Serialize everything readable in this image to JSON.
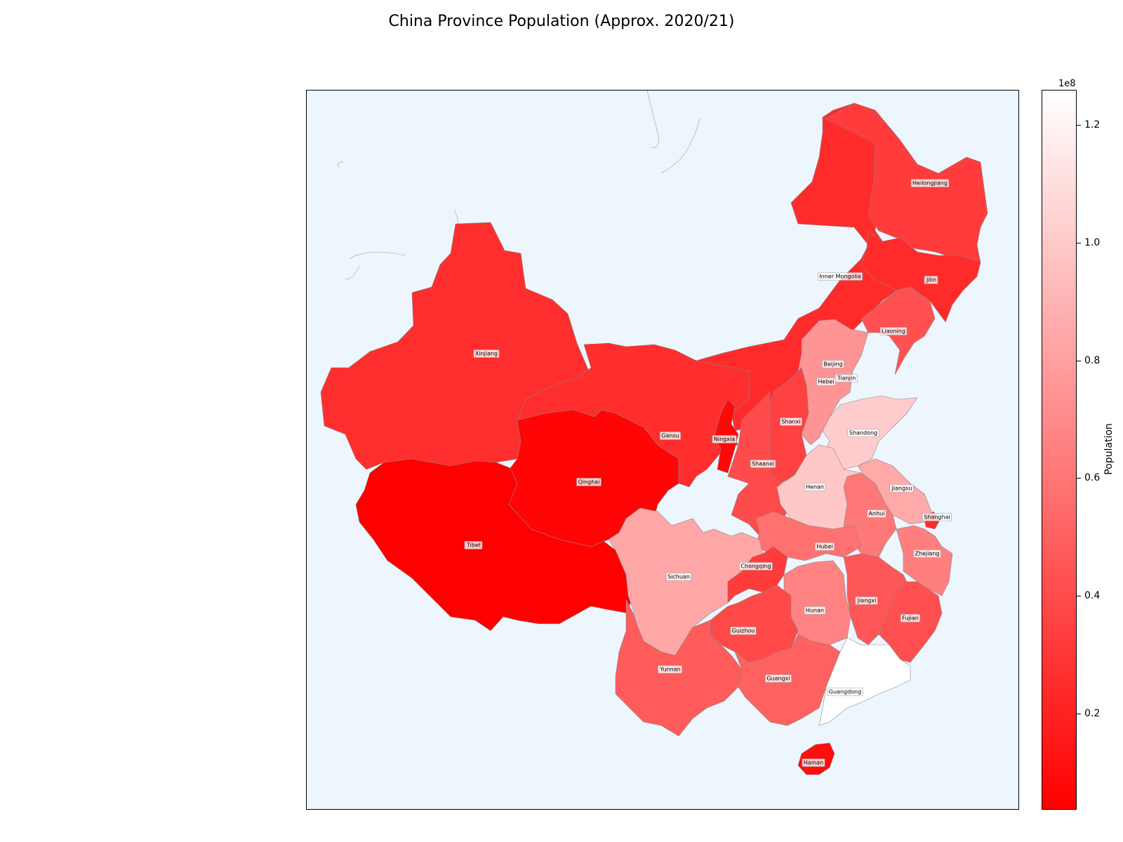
{
  "title": "China Province Population (Approx. 2020/21)",
  "colorbar": {
    "label": "Population",
    "exponent": "1e8",
    "ticks": [
      {
        "value": 20000000,
        "label": "0.2"
      },
      {
        "value": 40000000,
        "label": "0.4"
      },
      {
        "value": 60000000,
        "label": "0.6"
      },
      {
        "value": 80000000,
        "label": "0.8"
      },
      {
        "value": 100000000,
        "label": "1.0"
      },
      {
        "value": 120000000,
        "label": "1.2"
      }
    ],
    "min": 3600000,
    "max": 126000000,
    "colors": {
      "low": "#ff0000",
      "high": "#ffffff"
    }
  },
  "colors": {
    "ocean": "#eef6fd",
    "border": "#888888"
  },
  "map_data": {
    "type": "choropleth",
    "regions": [
      {
        "name": "Xinjiang",
        "population": 25850000
      },
      {
        "name": "Tibet",
        "population": 3650000
      },
      {
        "name": "Qinghai",
        "population": 5920000
      },
      {
        "name": "Gansu",
        "population": 25020000
      },
      {
        "name": "Inner Mongolia",
        "population": 24050000
      },
      {
        "name": "Heilongjiang",
        "population": 31850000
      },
      {
        "name": "Jilin",
        "population": 24070000
      },
      {
        "name": "Liaoning",
        "population": 42590000
      },
      {
        "name": "Beijing",
        "population": 21890000
      },
      {
        "name": "Tianjin",
        "population": 13870000
      },
      {
        "name": "Hebei",
        "population": 74610000
      },
      {
        "name": "Shanxi",
        "population": 34920000
      },
      {
        "name": "Shandong",
        "population": 101530000
      },
      {
        "name": "Ningxia",
        "population": 7200000
      },
      {
        "name": "Shaanxi",
        "population": 39530000
      },
      {
        "name": "Henan",
        "population": 99370000
      },
      {
        "name": "Jiangsu",
        "population": 84750000
      },
      {
        "name": "Anhui",
        "population": 61030000
      },
      {
        "name": "Shanghai",
        "population": 24870000
      },
      {
        "name": "Hubei",
        "population": 57750000
      },
      {
        "name": "Zhejiang",
        "population": 64570000
      },
      {
        "name": "Sichuan",
        "population": 83680000
      },
      {
        "name": "Chongqing",
        "population": 32050000
      },
      {
        "name": "Hunan",
        "population": 66450000
      },
      {
        "name": "Jiangxi",
        "population": 45190000
      },
      {
        "name": "Fujian",
        "population": 41540000
      },
      {
        "name": "Guizhou",
        "population": 38560000
      },
      {
        "name": "Yunnan",
        "population": 47210000
      },
      {
        "name": "Guangxi",
        "population": 50130000
      },
      {
        "name": "Guangdong",
        "population": 126010000
      },
      {
        "name": "Hainan",
        "population": 10080000
      }
    ]
  }
}
